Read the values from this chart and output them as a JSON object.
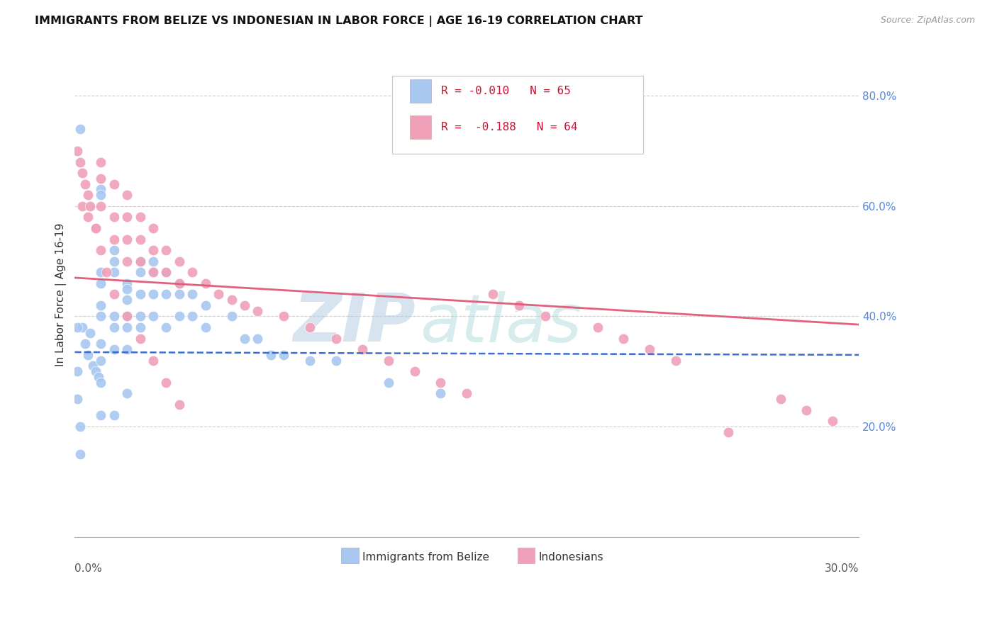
{
  "title": "IMMIGRANTS FROM BELIZE VS INDONESIAN IN LABOR FORCE | AGE 16-19 CORRELATION CHART",
  "source": "Source: ZipAtlas.com",
  "ylabel": "In Labor Force | Age 16-19",
  "belize_color": "#a8c8f0",
  "indonesian_color": "#f0a0b8",
  "belize_line_color": "#3366cc",
  "indonesian_line_color": "#e05878",
  "watermark_zip": "ZIP",
  "watermark_atlas": "atlas",
  "xlim": [
    0.0,
    0.03
  ],
  "ylim": [
    0.0,
    0.88
  ],
  "right_yticks": [
    0.2,
    0.4,
    0.6,
    0.8
  ],
  "right_yticklabels": [
    "20.0%",
    "40.0%",
    "60.0%",
    "80.0%"
  ],
  "belize_x": [
    0.0002,
    0.0003,
    0.0004,
    0.0005,
    0.0006,
    0.0007,
    0.0008,
    0.0009,
    0.001,
    0.001,
    0.001,
    0.001,
    0.001,
    0.001,
    0.001,
    0.001,
    0.001,
    0.001,
    0.0015,
    0.0015,
    0.0015,
    0.0015,
    0.0015,
    0.0015,
    0.0015,
    0.002,
    0.002,
    0.002,
    0.002,
    0.002,
    0.002,
    0.002,
    0.0025,
    0.0025,
    0.0025,
    0.0025,
    0.0025,
    0.003,
    0.003,
    0.003,
    0.003,
    0.0035,
    0.0035,
    0.0035,
    0.004,
    0.004,
    0.004,
    0.0045,
    0.0045,
    0.005,
    0.005,
    0.006,
    0.0065,
    0.007,
    0.0075,
    0.008,
    0.009,
    0.01,
    0.012,
    0.014,
    0.0001,
    0.0001,
    0.0001,
    0.0002,
    0.0002
  ],
  "belize_y": [
    0.74,
    0.38,
    0.35,
    0.33,
    0.37,
    0.31,
    0.3,
    0.29,
    0.63,
    0.62,
    0.48,
    0.46,
    0.42,
    0.4,
    0.35,
    0.32,
    0.28,
    0.22,
    0.52,
    0.5,
    0.48,
    0.4,
    0.38,
    0.34,
    0.22,
    0.46,
    0.45,
    0.43,
    0.4,
    0.38,
    0.34,
    0.26,
    0.5,
    0.48,
    0.44,
    0.4,
    0.38,
    0.5,
    0.48,
    0.44,
    0.4,
    0.48,
    0.44,
    0.38,
    0.46,
    0.44,
    0.4,
    0.44,
    0.4,
    0.42,
    0.38,
    0.4,
    0.36,
    0.36,
    0.33,
    0.33,
    0.32,
    0.32,
    0.28,
    0.26,
    0.38,
    0.3,
    0.25,
    0.2,
    0.15
  ],
  "indonesian_x": [
    0.0003,
    0.0005,
    0.0008,
    0.001,
    0.001,
    0.001,
    0.0015,
    0.0015,
    0.0015,
    0.002,
    0.002,
    0.002,
    0.002,
    0.0025,
    0.0025,
    0.0025,
    0.003,
    0.003,
    0.003,
    0.0035,
    0.0035,
    0.004,
    0.004,
    0.0045,
    0.005,
    0.0055,
    0.006,
    0.0065,
    0.007,
    0.008,
    0.009,
    0.01,
    0.011,
    0.012,
    0.013,
    0.014,
    0.015,
    0.016,
    0.017,
    0.018,
    0.02,
    0.021,
    0.022,
    0.023,
    0.025,
    0.027,
    0.028,
    0.029,
    0.0001,
    0.0002,
    0.0003,
    0.0004,
    0.0005,
    0.0006,
    0.0008,
    0.001,
    0.0012,
    0.0015,
    0.002,
    0.0025,
    0.003,
    0.0035,
    0.004
  ],
  "indonesian_y": [
    0.6,
    0.58,
    0.56,
    0.68,
    0.65,
    0.6,
    0.64,
    0.58,
    0.54,
    0.62,
    0.58,
    0.54,
    0.5,
    0.58,
    0.54,
    0.5,
    0.56,
    0.52,
    0.48,
    0.52,
    0.48,
    0.5,
    0.46,
    0.48,
    0.46,
    0.44,
    0.43,
    0.42,
    0.41,
    0.4,
    0.38,
    0.36,
    0.34,
    0.32,
    0.3,
    0.28,
    0.26,
    0.44,
    0.42,
    0.4,
    0.38,
    0.36,
    0.34,
    0.32,
    0.19,
    0.25,
    0.23,
    0.21,
    0.7,
    0.68,
    0.66,
    0.64,
    0.62,
    0.6,
    0.56,
    0.52,
    0.48,
    0.44,
    0.4,
    0.36,
    0.32,
    0.28,
    0.24
  ],
  "belize_trend_x": [
    0.0,
    0.03
  ],
  "belize_trend_y": [
    0.335,
    0.33
  ],
  "indonesian_trend_x": [
    0.0,
    0.03
  ],
  "indonesian_trend_y": [
    0.47,
    0.385
  ]
}
